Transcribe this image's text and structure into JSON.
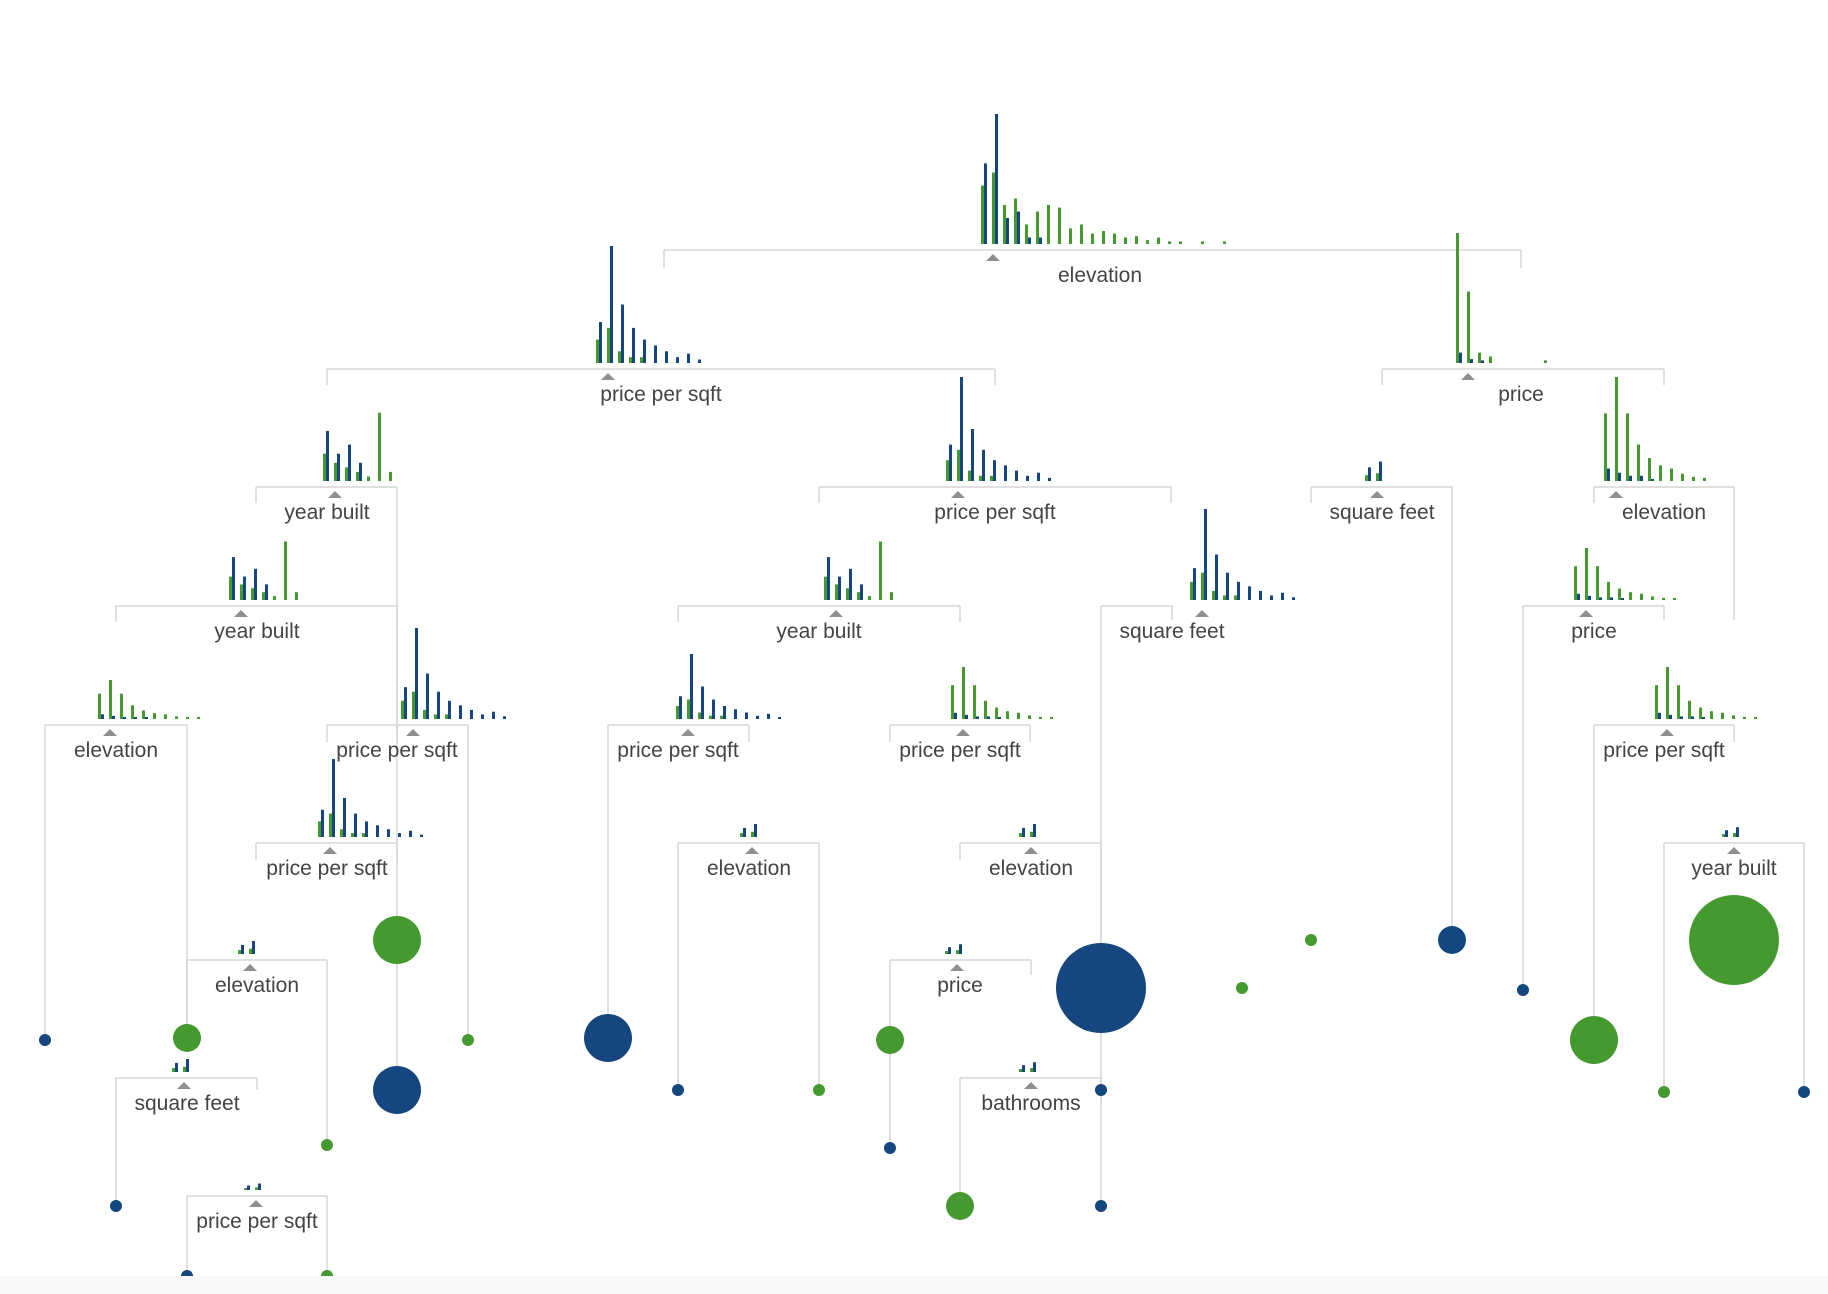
{
  "colors": {
    "class_a": "#16467f",
    "class_b": "#44992f",
    "connector": "#d6d6d6",
    "marker": "#8f8f8f",
    "label": "#444444"
  },
  "split_nodes": [
    {
      "id": "root",
      "label": "elevation",
      "hist": "mixed-wide"
    },
    {
      "id": "n_l",
      "label": "price per sqft",
      "hist": "blue-mostly"
    },
    {
      "id": "n_r",
      "label": "price",
      "hist": "green-spike"
    },
    {
      "id": "n_ll",
      "label": "year built",
      "hist": "mixed"
    },
    {
      "id": "n_lr",
      "label": "price per sqft",
      "hist": "blue-mostly"
    },
    {
      "id": "n_rl",
      "label": "square feet",
      "hist": "tiny"
    },
    {
      "id": "n_rr",
      "label": "elevation",
      "hist": "green-mostly"
    },
    {
      "id": "n_lll",
      "label": "year built",
      "hist": "mixed"
    },
    {
      "id": "n_llr",
      "label": "price per sqft",
      "hist": "blue-mostly"
    },
    {
      "id": "n_lrl",
      "label": "year built",
      "hist": "mixed"
    },
    {
      "id": "n_lrr",
      "label": "square feet",
      "hist": "blue-mostly"
    },
    {
      "id": "n_rrl",
      "label": "price",
      "hist": "green-mostly"
    },
    {
      "id": "n_llll",
      "label": "elevation",
      "hist": "green-mostly"
    },
    {
      "id": "n_llrl",
      "label": "price per sqft",
      "hist": "blue-mostly"
    },
    {
      "id": "n_lrll",
      "label": "price per sqft",
      "hist": "blue-mostly"
    },
    {
      "id": "n_lrlr",
      "label": "price per sqft",
      "hist": "green-mostly"
    },
    {
      "id": "n_rrlr",
      "label": "price per sqft",
      "hist": "green-mostly"
    },
    {
      "id": "n_lllll",
      "label": "elevation",
      "hist": "tiny"
    },
    {
      "id": "n_lrllr",
      "label": "elevation",
      "hist": "tiny"
    },
    {
      "id": "n_lrlrr",
      "label": "elevation",
      "hist": "tiny"
    },
    {
      "id": "n_rrr",
      "label": "year built",
      "hist": "tiny"
    },
    {
      "id": "n_llllx",
      "label": "square feet",
      "hist": "tiny"
    },
    {
      "id": "n_lrlrrl",
      "label": "price",
      "hist": "tiny"
    },
    {
      "id": "n_lrlrrlr",
      "label": "bathrooms",
      "hist": "tiny"
    },
    {
      "id": "n_llllxr",
      "label": "price per sqft",
      "hist": "tiny"
    }
  ],
  "leaves": [
    {
      "id": "leaf_01",
      "class": "class_a",
      "size": "small"
    },
    {
      "id": "leaf_02",
      "class": "class_b",
      "size": "medium"
    },
    {
      "id": "leaf_03",
      "class": "class_a",
      "size": "small"
    },
    {
      "id": "leaf_04",
      "class": "class_a",
      "size": "small"
    },
    {
      "id": "leaf_05",
      "class": "class_b",
      "size": "small"
    },
    {
      "id": "leaf_06",
      "class": "class_b",
      "size": "small"
    },
    {
      "id": "leaf_07",
      "class": "class_b",
      "size": "large"
    },
    {
      "id": "leaf_08",
      "class": "class_a",
      "size": "large"
    },
    {
      "id": "leaf_09",
      "class": "class_b",
      "size": "small"
    },
    {
      "id": "leaf_10",
      "class": "class_a",
      "size": "large"
    },
    {
      "id": "leaf_11",
      "class": "class_a",
      "size": "small"
    },
    {
      "id": "leaf_12",
      "class": "class_b",
      "size": "small"
    },
    {
      "id": "leaf_13",
      "class": "class_b",
      "size": "medium"
    },
    {
      "id": "leaf_14",
      "class": "class_a",
      "size": "small"
    },
    {
      "id": "leaf_15",
      "class": "class_a",
      "size": "xlarge"
    },
    {
      "id": "leaf_16",
      "class": "class_b",
      "size": "medium"
    },
    {
      "id": "leaf_17",
      "class": "class_a",
      "size": "small"
    },
    {
      "id": "leaf_18",
      "class": "class_a",
      "size": "small"
    },
    {
      "id": "leaf_19",
      "class": "class_b",
      "size": "small"
    },
    {
      "id": "leaf_20",
      "class": "class_b",
      "size": "small"
    },
    {
      "id": "leaf_21",
      "class": "class_a",
      "size": "medium"
    },
    {
      "id": "leaf_22",
      "class": "class_a",
      "size": "small"
    },
    {
      "id": "leaf_23",
      "class": "class_b",
      "size": "large"
    },
    {
      "id": "leaf_24",
      "class": "class_b",
      "size": "xlarge"
    },
    {
      "id": "leaf_25",
      "class": "class_b",
      "size": "small"
    },
    {
      "id": "leaf_26",
      "class": "class_a",
      "size": "small"
    }
  ]
}
